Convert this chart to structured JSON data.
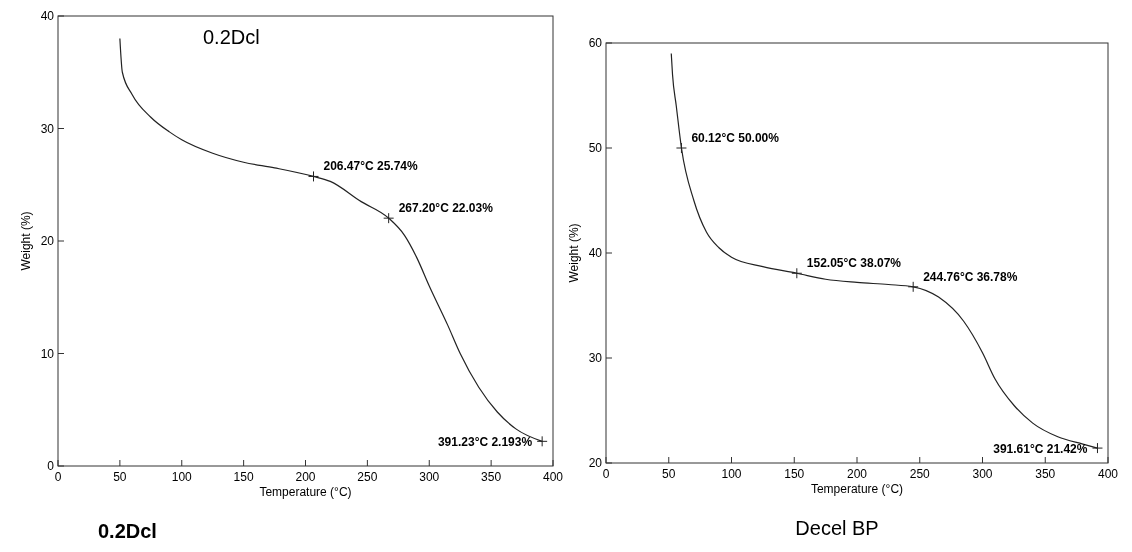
{
  "chart_data": [
    {
      "type": "line",
      "title": "0.2Dcl",
      "xlabel": "Temperature (°C)",
      "ylabel": "Weight (%)",
      "xlim": [
        0,
        400
      ],
      "xticks": [
        0,
        50,
        100,
        150,
        200,
        250,
        300,
        350,
        400
      ],
      "ylim": [
        0,
        40
      ],
      "yticks": [
        0,
        10,
        20,
        30,
        40
      ],
      "grid": false,
      "marker": "none",
      "line_style": "solid",
      "series": [
        {
          "color": "#222222",
          "x": [
            50,
            52,
            60,
            75,
            90,
            100,
            125,
            150,
            175,
            206.47,
            220,
            245,
            267.2,
            280,
            290,
            300,
            315,
            325,
            340,
            355,
            370,
            391.23
          ],
          "values": [
            38,
            35,
            33,
            31,
            29.7,
            29,
            27.8,
            27,
            26.5,
            25.74,
            25.3,
            23.5,
            22.03,
            20.5,
            18.5,
            16,
            12.5,
            10,
            7,
            4.8,
            3.3,
            2.193
          ]
        }
      ],
      "annotations": [
        {
          "text": "206.47°C 25.74%",
          "x": 206.47,
          "y": 25.74
        },
        {
          "text": "267.20°C 22.03%",
          "x": 267.2,
          "y": 22.03
        },
        {
          "text": "391.23°C 2.193%",
          "x": 391.23,
          "y": 2.193
        },
        "0.2Dcl"
      ]
    },
    {
      "type": "line",
      "xlabel": "Temperature (°C)",
      "ylabel": "Weight (%)",
      "xlim": [
        0,
        400
      ],
      "xticks": [
        0,
        50,
        100,
        150,
        200,
        250,
        300,
        350,
        400
      ],
      "ylim": [
        20,
        60
      ],
      "yticks": [
        20,
        30,
        40,
        50,
        60
      ],
      "grid": false,
      "marker": "none",
      "line_style": "solid",
      "series": [
        {
          "color": "#222222",
          "x": [
            52,
            53,
            56,
            60.12,
            70,
            80,
            90,
            100,
            125,
            152.05,
            175,
            200,
            225,
            244.76,
            265,
            285,
            300,
            310,
            325,
            340,
            360,
            380,
            391.61
          ],
          "values": [
            59,
            57,
            54,
            50,
            45,
            42,
            40.5,
            39.6,
            38.7,
            38.07,
            37.5,
            37.2,
            37,
            36.78,
            35.8,
            33.5,
            30.5,
            28,
            25.5,
            23.8,
            22.5,
            21.8,
            21.42
          ]
        }
      ],
      "annotations": [
        {
          "text": "60.12°C 50.00%",
          "x": 60.12,
          "y": 50
        },
        {
          "text": "152.05°C 38.07%",
          "x": 152.05,
          "y": 38.07
        },
        {
          "text": "244.76°C 36.78%",
          "x": 244.76,
          "y": 36.78
        },
        {
          "text": "391.61°C 21.42%",
          "x": 391.61,
          "y": 21.42
        },
        "Decel BP"
      ]
    }
  ]
}
